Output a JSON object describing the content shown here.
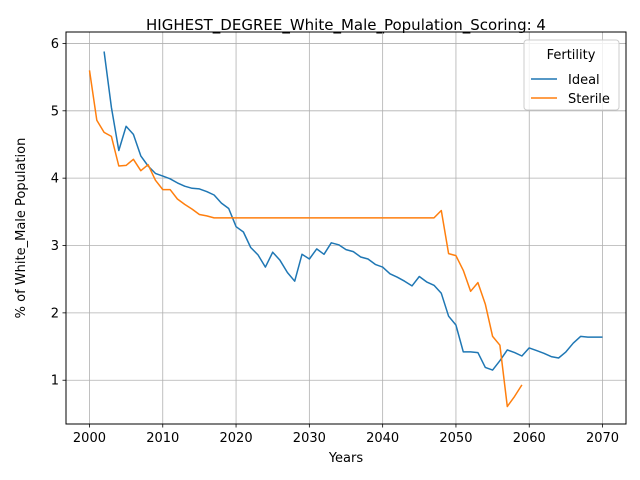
{
  "chart_data": {
    "type": "line",
    "title": "HIGHEST_DEGREE_White_Male_Population_Scoring: 4",
    "xlabel": "Years",
    "ylabel": "% of White_Male Population",
    "xlim": [
      1996.8,
      2073.2
    ],
    "ylim": [
      0.35,
      6.17
    ],
    "xticks": [
      2000,
      2010,
      2020,
      2030,
      2040,
      2050,
      2060,
      2070
    ],
    "yticks": [
      1,
      2,
      3,
      4,
      5,
      6
    ],
    "grid": true,
    "legend": {
      "title": "Fertility",
      "placement": "top-right"
    },
    "series": [
      {
        "name": "Ideal",
        "color": "#1f77b4",
        "x": [
          2002,
          2003,
          2004,
          2005,
          2006,
          2007,
          2008,
          2009,
          2010,
          2011,
          2012,
          2013,
          2014,
          2015,
          2016,
          2017,
          2018,
          2019,
          2020,
          2021,
          2022,
          2023,
          2024,
          2025,
          2026,
          2027,
          2028,
          2029,
          2030,
          2031,
          2032,
          2033,
          2034,
          2035,
          2036,
          2037,
          2038,
          2039,
          2040,
          2041,
          2042,
          2043,
          2044,
          2045,
          2046,
          2047,
          2048,
          2049,
          2050,
          2051,
          2052,
          2053,
          2054,
          2055,
          2056,
          2057,
          2058,
          2059,
          2060,
          2061,
          2062,
          2063,
          2064,
          2065,
          2066,
          2067,
          2068,
          2069,
          2070
        ],
        "values": [
          5.88,
          5.05,
          4.41,
          4.77,
          4.65,
          4.33,
          4.18,
          4.07,
          4.03,
          3.99,
          3.93,
          3.88,
          3.85,
          3.84,
          3.8,
          3.75,
          3.63,
          3.55,
          3.28,
          3.2,
          2.97,
          2.86,
          2.68,
          2.9,
          2.78,
          2.6,
          2.47,
          2.87,
          2.8,
          2.95,
          2.87,
          3.04,
          3.01,
          2.94,
          2.91,
          2.83,
          2.8,
          2.72,
          2.68,
          2.58,
          2.53,
          2.47,
          2.4,
          2.54,
          2.46,
          2.41,
          2.29,
          1.95,
          1.82,
          1.42,
          1.42,
          1.41,
          1.19,
          1.15,
          1.29,
          1.45,
          1.41,
          1.36,
          1.48,
          1.44,
          1.4,
          1.35,
          1.33,
          1.42,
          1.55,
          1.65,
          1.64,
          1.64,
          1.64
        ]
      },
      {
        "name": "Sterile",
        "color": "#ff7f0e",
        "x": [
          2000,
          2001,
          2002,
          2003,
          2004,
          2005,
          2006,
          2007,
          2008,
          2009,
          2010,
          2011,
          2012,
          2013,
          2014,
          2015,
          2016,
          2017,
          2018,
          2019,
          2020,
          2025,
          2030,
          2035,
          2040,
          2045,
          2046,
          2047,
          2048,
          2049,
          2050,
          2051,
          2052,
          2053,
          2054,
          2055,
          2056,
          2057,
          2058,
          2059
        ],
        "values": [
          5.6,
          4.86,
          4.68,
          4.62,
          4.18,
          4.19,
          4.28,
          4.11,
          4.2,
          3.97,
          3.83,
          3.83,
          3.69,
          3.61,
          3.54,
          3.46,
          3.44,
          3.41,
          3.41,
          3.41,
          3.41,
          3.41,
          3.41,
          3.41,
          3.41,
          3.41,
          3.41,
          3.41,
          3.52,
          2.88,
          2.85,
          2.63,
          2.32,
          2.45,
          2.13,
          1.65,
          1.52,
          0.61,
          0.76,
          0.93
        ]
      }
    ]
  }
}
